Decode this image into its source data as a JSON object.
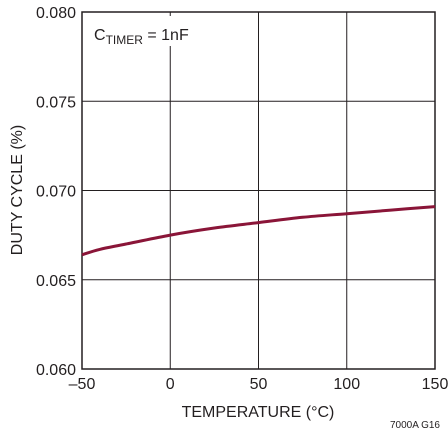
{
  "chart_data": {
    "type": "line",
    "title": "",
    "xlabel": "TEMPERATURE (°C)",
    "ylabel": "DUTY CYCLE (%)",
    "xlim": [
      -50,
      150
    ],
    "ylim": [
      0.06,
      0.08
    ],
    "x_ticks": [
      "–50",
      "0",
      "50",
      "100",
      "150"
    ],
    "y_ticks": [
      "0.060",
      "0.065",
      "0.070",
      "0.075",
      "0.080"
    ],
    "grid": true,
    "annotation": {
      "main": "C",
      "sub": "TIMER",
      "rest": " = 1nF"
    },
    "figure_code": "7000A G16",
    "series": [
      {
        "color": "#8a1538",
        "x": [
          -50,
          -40,
          -25,
          0,
          25,
          50,
          75,
          100,
          125,
          150
        ],
        "y": [
          0.0664,
          0.0667,
          0.067,
          0.0675,
          0.0679,
          0.0682,
          0.0685,
          0.0687,
          0.0689,
          0.0691
        ]
      }
    ]
  }
}
